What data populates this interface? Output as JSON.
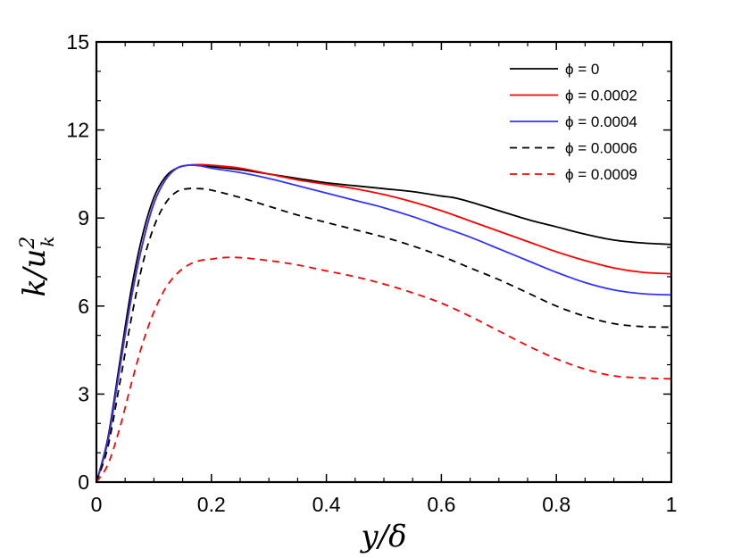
{
  "chart_data": {
    "type": "line",
    "title": "",
    "xlabel": "y/δ",
    "ylabel": "k/u_k^2",
    "ylabel_parts": {
      "base": "k/u",
      "sup": "2",
      "sub": "k"
    },
    "xlim": [
      0,
      1
    ],
    "ylim": [
      0,
      15
    ],
    "xticks": [
      0,
      0.2,
      0.4,
      0.6,
      0.8,
      1
    ],
    "xtick_labels": [
      "0",
      "0.2",
      "0.4",
      "0.6",
      "0.8",
      "1"
    ],
    "yticks": [
      0,
      3,
      6,
      9,
      12,
      15
    ],
    "ytick_labels": [
      "0",
      "3",
      "6",
      "9",
      "12",
      "15"
    ],
    "grid": false,
    "legend_position": "top-right",
    "series": [
      {
        "name": "ϕ = 0",
        "color": "#000000",
        "dash": "solid",
        "x": [
          0,
          0.02,
          0.04,
          0.06,
          0.08,
          0.1,
          0.12,
          0.14,
          0.16,
          0.18,
          0.2,
          0.25,
          0.3,
          0.35,
          0.4,
          0.45,
          0.5,
          0.55,
          0.6,
          0.62,
          0.65,
          0.7,
          0.75,
          0.8,
          0.85,
          0.9,
          0.95,
          1.0
        ],
        "y": [
          0,
          1.5,
          4.0,
          6.5,
          8.4,
          9.7,
          10.4,
          10.7,
          10.8,
          10.8,
          10.75,
          10.65,
          10.5,
          10.35,
          10.2,
          10.1,
          10.0,
          9.9,
          9.75,
          9.7,
          9.55,
          9.25,
          8.95,
          8.7,
          8.45,
          8.25,
          8.15,
          8.1
        ]
      },
      {
        "name": "ϕ = 0.0002",
        "color": "#ff0000",
        "dash": "solid",
        "x": [
          0,
          0.02,
          0.04,
          0.06,
          0.08,
          0.1,
          0.12,
          0.14,
          0.16,
          0.18,
          0.2,
          0.25,
          0.3,
          0.35,
          0.4,
          0.45,
          0.5,
          0.55,
          0.6,
          0.65,
          0.7,
          0.75,
          0.8,
          0.85,
          0.9,
          0.95,
          1.0
        ],
        "y": [
          0,
          1.4,
          3.8,
          6.2,
          8.1,
          9.5,
          10.3,
          10.7,
          10.8,
          10.82,
          10.8,
          10.7,
          10.5,
          10.3,
          10.15,
          10.0,
          9.8,
          9.55,
          9.25,
          8.9,
          8.55,
          8.2,
          7.85,
          7.55,
          7.3,
          7.15,
          7.1
        ]
      },
      {
        "name": "ϕ = 0.0004",
        "color": "#3333ff",
        "dash": "solid",
        "x": [
          0,
          0.02,
          0.04,
          0.06,
          0.08,
          0.1,
          0.12,
          0.14,
          0.16,
          0.18,
          0.2,
          0.25,
          0.3,
          0.35,
          0.4,
          0.45,
          0.5,
          0.55,
          0.6,
          0.65,
          0.7,
          0.75,
          0.8,
          0.85,
          0.9,
          0.95,
          1.0
        ],
        "y": [
          0,
          1.4,
          3.8,
          6.2,
          8.1,
          9.5,
          10.3,
          10.7,
          10.8,
          10.78,
          10.7,
          10.55,
          10.35,
          10.1,
          9.85,
          9.6,
          9.35,
          9.05,
          8.7,
          8.35,
          7.95,
          7.55,
          7.15,
          6.8,
          6.55,
          6.42,
          6.38
        ]
      },
      {
        "name": "ϕ = 0.0006",
        "color": "#000000",
        "dash": "dashed",
        "x": [
          0,
          0.02,
          0.04,
          0.06,
          0.08,
          0.1,
          0.12,
          0.14,
          0.16,
          0.18,
          0.2,
          0.25,
          0.3,
          0.35,
          0.4,
          0.45,
          0.5,
          0.55,
          0.6,
          0.65,
          0.7,
          0.75,
          0.8,
          0.85,
          0.9,
          0.95,
          1.0
        ],
        "y": [
          0,
          1.2,
          3.3,
          5.5,
          7.4,
          8.7,
          9.5,
          9.9,
          10.0,
          10.0,
          9.95,
          9.7,
          9.4,
          9.1,
          8.85,
          8.6,
          8.35,
          8.05,
          7.7,
          7.3,
          6.9,
          6.45,
          6.0,
          5.65,
          5.4,
          5.3,
          5.28
        ]
      },
      {
        "name": "ϕ = 0.0009",
        "color": "#ff0000",
        "dash": "dashed",
        "x": [
          0,
          0.02,
          0.04,
          0.06,
          0.08,
          0.1,
          0.12,
          0.14,
          0.16,
          0.18,
          0.2,
          0.22,
          0.25,
          0.3,
          0.35,
          0.4,
          0.45,
          0.5,
          0.55,
          0.6,
          0.65,
          0.7,
          0.75,
          0.8,
          0.85,
          0.9,
          0.95,
          1.0
        ],
        "y": [
          0,
          0.6,
          1.8,
          3.3,
          4.7,
          5.8,
          6.6,
          7.1,
          7.4,
          7.55,
          7.6,
          7.65,
          7.65,
          7.55,
          7.4,
          7.2,
          7.0,
          6.75,
          6.45,
          6.1,
          5.65,
          5.15,
          4.65,
          4.2,
          3.85,
          3.62,
          3.55,
          3.52
        ]
      }
    ]
  }
}
